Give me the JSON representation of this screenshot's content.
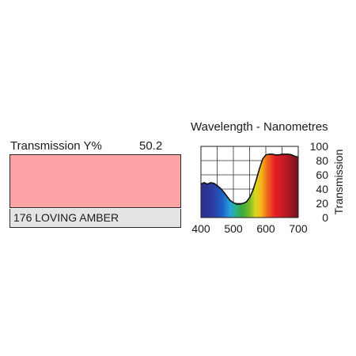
{
  "swatch": {
    "transmission_label": "Transmission Y%",
    "transmission_value": "50.2",
    "filter_name": "176 LOVING AMBER",
    "color": "#fca3a5"
  },
  "chart_data": {
    "type": "area",
    "title": "Wavelength - Nanometres",
    "xlabel": "",
    "ylabel": "Transmission",
    "xlim": [
      400,
      700
    ],
    "ylim": [
      0,
      100
    ],
    "grid": true,
    "x_ticks": [
      "400",
      "500",
      "600",
      "700"
    ],
    "y_ticks": [
      "0",
      "20",
      "40",
      "60",
      "80",
      "100"
    ],
    "series": [
      {
        "x": [
          400,
          410,
          420,
          430,
          440,
          450,
          460,
          470,
          480,
          490,
          500,
          510,
          520,
          530,
          540,
          550,
          560,
          570,
          580,
          590,
          600,
          610,
          620,
          630,
          640,
          650,
          660,
          670,
          680,
          690,
          700
        ],
        "y": [
          47,
          49,
          47,
          49,
          48,
          45,
          41,
          36,
          30,
          24,
          21,
          19,
          19,
          20,
          22,
          28,
          38,
          52,
          68,
          82,
          88,
          89,
          89,
          88,
          88,
          89,
          89,
          89,
          88,
          86,
          85
        ]
      }
    ]
  }
}
